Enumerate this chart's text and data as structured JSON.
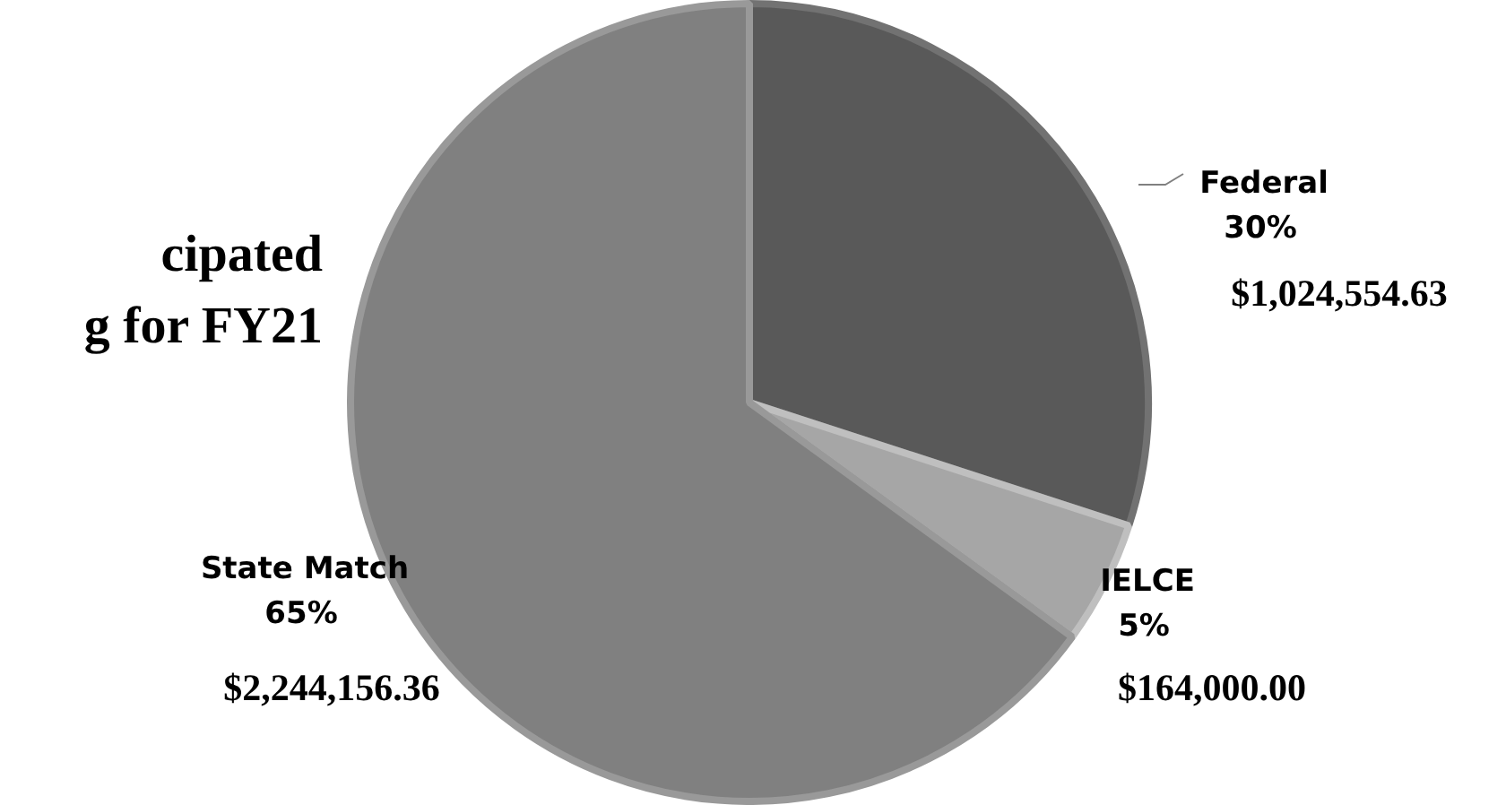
{
  "chart_data": {
    "type": "pie",
    "title": "cipated\ng for FY21",
    "categories": [
      "Federal",
      "IELCE",
      "State Match"
    ],
    "values": [
      30,
      5,
      65
    ],
    "colors": [
      "#595959",
      "#a6a6a6",
      "#808080"
    ],
    "value_labels": [
      "30%",
      "5%",
      "65%"
    ],
    "annotations": [
      "$1,024,554.63",
      "$164,000.00",
      "$2,244,156.36"
    ],
    "legend": false
  }
}
